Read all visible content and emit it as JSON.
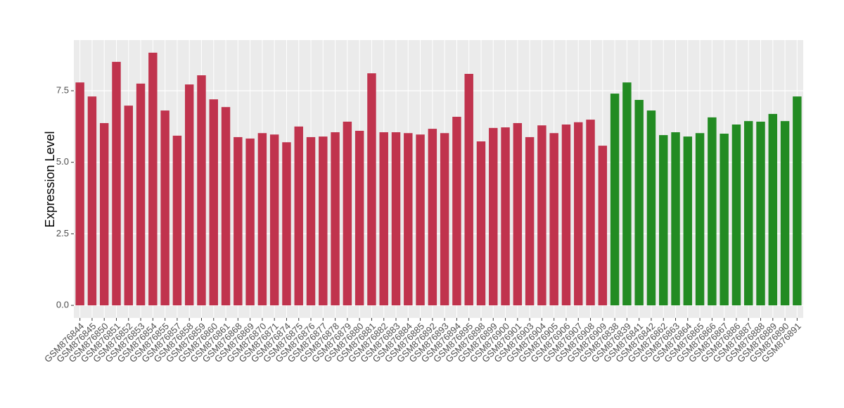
{
  "chart_data": {
    "type": "bar",
    "y_label": "Expression Level",
    "categories": [
      "GSM876844",
      "GSM876845",
      "GSM876850",
      "GSM876851",
      "GSM876852",
      "GSM876853",
      "GSM876854",
      "GSM876855",
      "GSM876857",
      "GSM876858",
      "GSM876859",
      "GSM876860",
      "GSM876861",
      "GSM876868",
      "GSM876869",
      "GSM876870",
      "GSM876871",
      "GSM876874",
      "GSM876875",
      "GSM876876",
      "GSM876877",
      "GSM876878",
      "GSM876879",
      "GSM876880",
      "GSM876881",
      "GSM876882",
      "GSM876883",
      "GSM876884",
      "GSM876885",
      "GSM876892",
      "GSM876893",
      "GSM876894",
      "GSM876895",
      "GSM876898",
      "GSM876899",
      "GSM876900",
      "GSM876901",
      "GSM876903",
      "GSM876904",
      "GSM876905",
      "GSM876906",
      "GSM876907",
      "GSM876908",
      "GSM876909",
      "GSM876838",
      "GSM876839",
      "GSM876841",
      "GSM876842",
      "GSM876862",
      "GSM876863",
      "GSM876864",
      "GSM876865",
      "GSM876866",
      "GSM876867",
      "GSM876886",
      "GSM876887",
      "GSM876888",
      "GSM876889",
      "GSM876890",
      "GSM876891"
    ],
    "values": [
      7.79,
      7.3,
      6.37,
      8.51,
      6.98,
      7.75,
      8.83,
      6.81,
      5.93,
      7.72,
      8.04,
      7.2,
      6.93,
      5.88,
      5.83,
      6.02,
      5.97,
      5.7,
      6.25,
      5.88,
      5.9,
      6.05,
      6.42,
      6.1,
      8.11,
      6.05,
      6.05,
      6.02,
      5.97,
      6.17,
      6.02,
      6.59,
      8.09,
      5.73,
      6.2,
      6.22,
      6.37,
      5.88,
      6.29,
      6.02,
      6.32,
      6.4,
      6.49,
      5.58,
      7.4,
      7.79,
      7.18,
      6.81,
      5.95,
      6.05,
      5.9,
      6.02,
      6.57,
      6.0,
      6.32,
      6.44,
      6.42,
      6.69,
      6.44,
      7.3
    ],
    "colors": [
      "#c0334d",
      "#c0334d",
      "#c0334d",
      "#c0334d",
      "#c0334d",
      "#c0334d",
      "#c0334d",
      "#c0334d",
      "#c0334d",
      "#c0334d",
      "#c0334d",
      "#c0334d",
      "#c0334d",
      "#c0334d",
      "#c0334d",
      "#c0334d",
      "#c0334d",
      "#c0334d",
      "#c0334d",
      "#c0334d",
      "#c0334d",
      "#c0334d",
      "#c0334d",
      "#c0334d",
      "#c0334d",
      "#c0334d",
      "#c0334d",
      "#c0334d",
      "#c0334d",
      "#c0334d",
      "#c0334d",
      "#c0334d",
      "#c0334d",
      "#c0334d",
      "#c0334d",
      "#c0334d",
      "#c0334d",
      "#c0334d",
      "#c0334d",
      "#c0334d",
      "#c0334d",
      "#c0334d",
      "#c0334d",
      "#c0334d",
      "#228b22",
      "#228b22",
      "#228b22",
      "#228b22",
      "#228b22",
      "#228b22",
      "#228b22",
      "#228b22",
      "#228b22",
      "#228b22",
      "#228b22",
      "#228b22",
      "#228b22",
      "#228b22",
      "#228b22",
      "#228b22"
    ],
    "ylim": [
      -0.44,
      9.27
    ],
    "yticks": [
      {
        "value": 0,
        "label": "0.0"
      },
      2.5,
      {
        "value": 5,
        "label": "5.0"
      },
      7.5
    ],
    "grid": true
  }
}
